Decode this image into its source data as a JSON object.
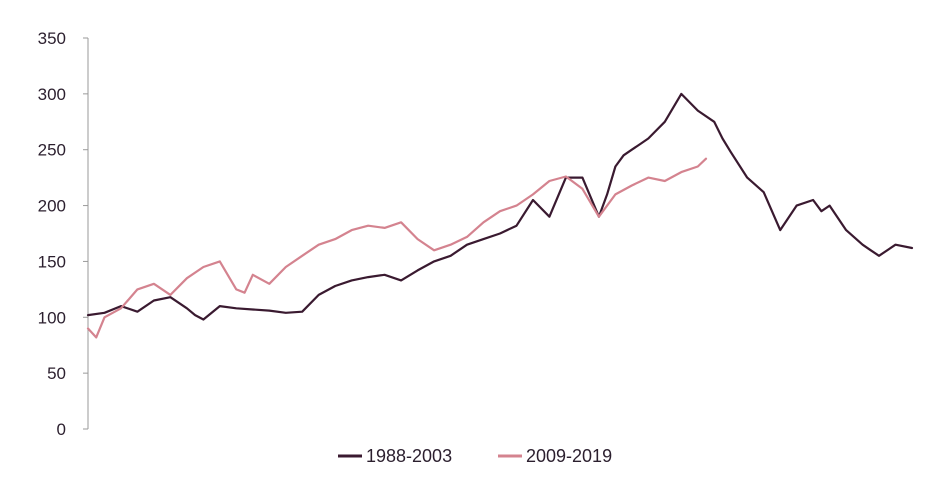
{
  "chart_data": {
    "type": "line",
    "title": "",
    "xlabel": "",
    "ylabel": "",
    "ylim": [
      0,
      350
    ],
    "yticks": [
      0,
      50,
      100,
      150,
      200,
      250,
      300,
      350
    ],
    "grid": false,
    "legend_position": "bottom-center",
    "x_index_range": [
      0,
      1
    ],
    "series": [
      {
        "name": "1988-2003",
        "color": "#3a1a30",
        "x": [
          0,
          0.02,
          0.04,
          0.06,
          0.08,
          0.1,
          0.12,
          0.13,
          0.14,
          0.16,
          0.18,
          0.2,
          0.22,
          0.24,
          0.26,
          0.28,
          0.3,
          0.32,
          0.34,
          0.36,
          0.38,
          0.4,
          0.42,
          0.44,
          0.46,
          0.48,
          0.5,
          0.52,
          0.54,
          0.56,
          0.58,
          0.6,
          0.62,
          0.63,
          0.64,
          0.65,
          0.66,
          0.67,
          0.68,
          0.7,
          0.72,
          0.74,
          0.76,
          0.77,
          0.78,
          0.8,
          0.82,
          0.84,
          0.86,
          0.88,
          0.89,
          0.9,
          0.92,
          0.94,
          0.95,
          0.96,
          0.98,
          1.0
        ],
        "values": [
          102,
          104,
          110,
          105,
          115,
          118,
          108,
          102,
          98,
          110,
          108,
          107,
          106,
          104,
          105,
          120,
          128,
          133,
          136,
          138,
          133,
          142,
          150,
          155,
          165,
          170,
          175,
          182,
          205,
          190,
          225,
          225,
          190,
          210,
          235,
          245,
          250,
          255,
          260,
          275,
          300,
          285,
          275,
          260,
          248,
          225,
          212,
          178,
          200,
          205,
          195,
          200,
          178,
          165,
          160,
          155,
          165,
          162
        ]
      },
      {
        "name": "2009-2019",
        "color": "#d4838f",
        "x": [
          0,
          0.01,
          0.02,
          0.04,
          0.06,
          0.08,
          0.1,
          0.12,
          0.14,
          0.16,
          0.18,
          0.19,
          0.2,
          0.22,
          0.24,
          0.26,
          0.28,
          0.3,
          0.32,
          0.34,
          0.36,
          0.38,
          0.4,
          0.42,
          0.44,
          0.46,
          0.48,
          0.5,
          0.52,
          0.54,
          0.56,
          0.58,
          0.6,
          0.62,
          0.64,
          0.66,
          0.68,
          0.7,
          0.72,
          0.74,
          0.75
        ],
        "values": [
          90,
          82,
          100,
          108,
          125,
          130,
          120,
          135,
          145,
          150,
          125,
          122,
          138,
          130,
          145,
          155,
          165,
          170,
          178,
          182,
          180,
          185,
          170,
          160,
          165,
          172,
          185,
          195,
          200,
          210,
          222,
          226,
          215,
          190,
          210,
          218,
          225,
          222,
          230,
          235,
          242
        ]
      }
    ]
  }
}
